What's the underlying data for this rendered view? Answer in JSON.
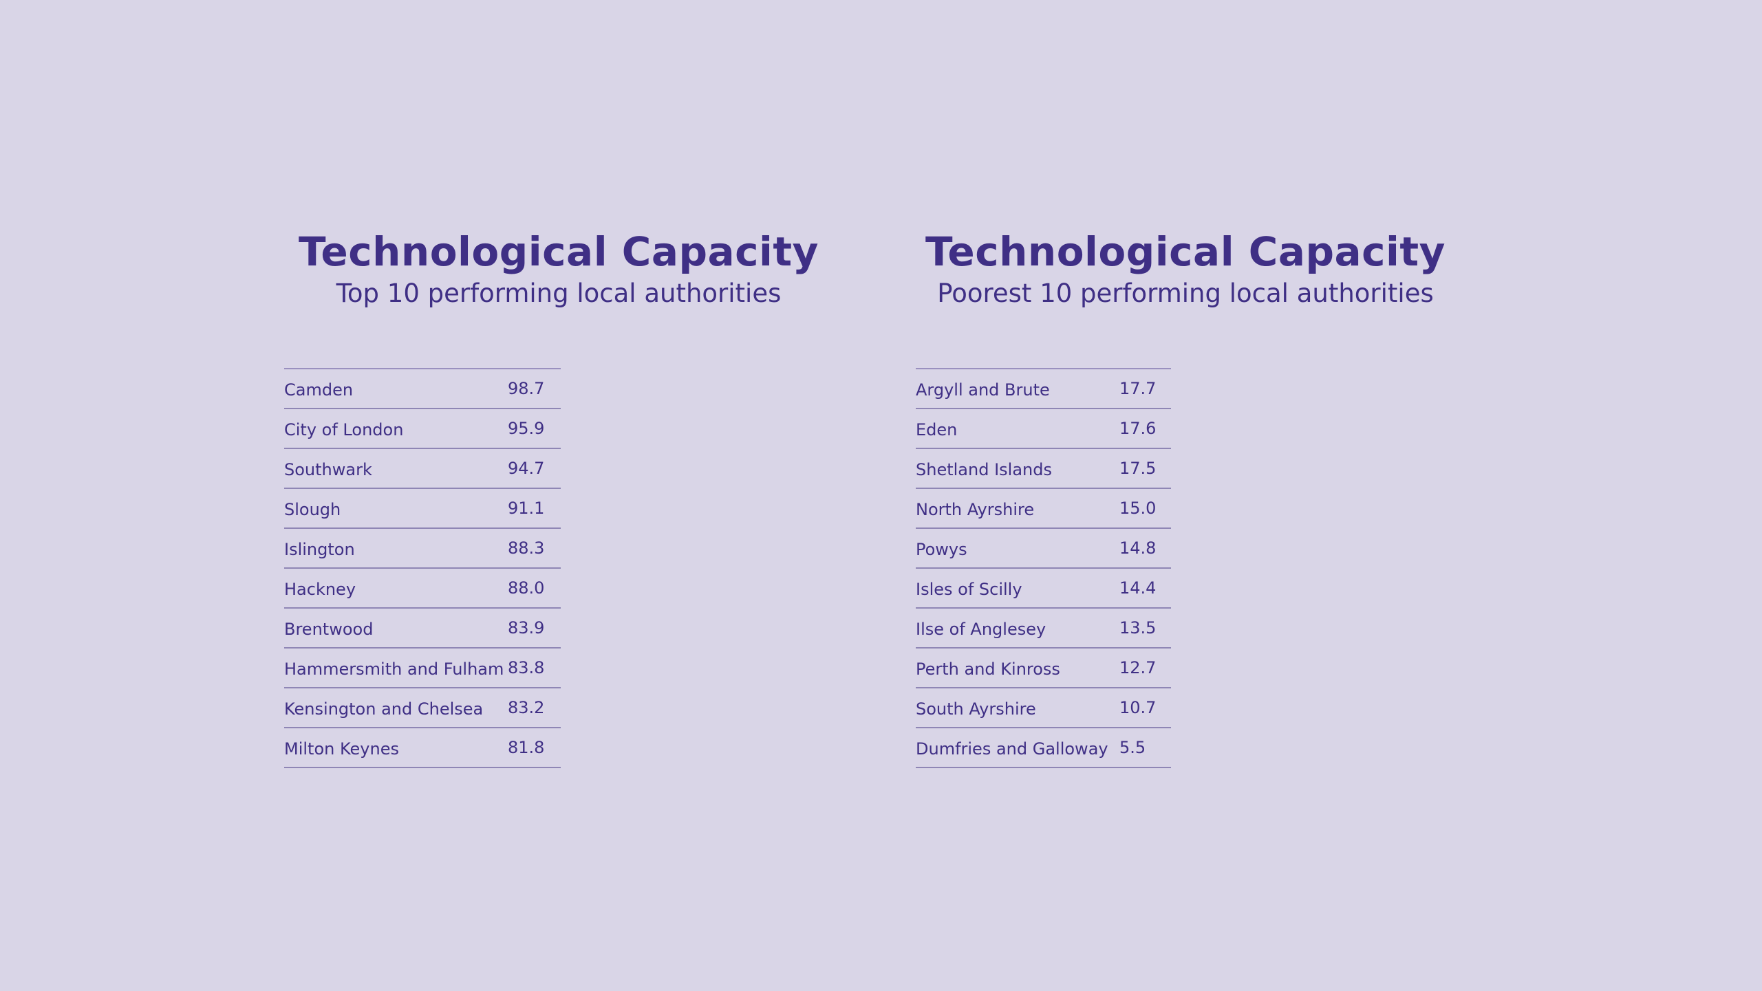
{
  "colors": {
    "background": "#d9d5e7",
    "text": "#3f2f85",
    "rule": "#8f86b5"
  },
  "left": {
    "title": "Technological Capacity",
    "subtitle": "Top 10 performing local authorities",
    "rows": [
      {
        "name": "Camden",
        "value": "98.7"
      },
      {
        "name": "City of London",
        "value": "95.9"
      },
      {
        "name": "Southwark",
        "value": "94.7"
      },
      {
        "name": "Slough",
        "value": "91.1"
      },
      {
        "name": "Islington",
        "value": "88.3"
      },
      {
        "name": "Hackney",
        "value": "88.0"
      },
      {
        "name": "Brentwood",
        "value": "83.9"
      },
      {
        "name": "Hammersmith and Fulham",
        "value": "83.8"
      },
      {
        "name": "Kensington and Chelsea",
        "value": "83.2"
      },
      {
        "name": "Milton Keynes",
        "value": "81.8"
      }
    ]
  },
  "right": {
    "title": "Technological Capacity",
    "subtitle": "Poorest 10 performing local authorities",
    "rows": [
      {
        "name": "Argyll and Brute",
        "value": "17.7"
      },
      {
        "name": "Eden",
        "value": "17.6"
      },
      {
        "name": "Shetland Islands",
        "value": "17.5"
      },
      {
        "name": "North Ayrshire",
        "value": "15.0"
      },
      {
        "name": "Powys",
        "value": "14.8"
      },
      {
        "name": "Isles of Scilly",
        "value": "14.4"
      },
      {
        "name": "Ilse of Anglesey",
        "value": "13.5"
      },
      {
        "name": "Perth and Kinross",
        "value": "12.7"
      },
      {
        "name": "South Ayrshire",
        "value": "10.7"
      },
      {
        "name": "Dumfries and Galloway",
        "value": "5.5"
      }
    ]
  }
}
